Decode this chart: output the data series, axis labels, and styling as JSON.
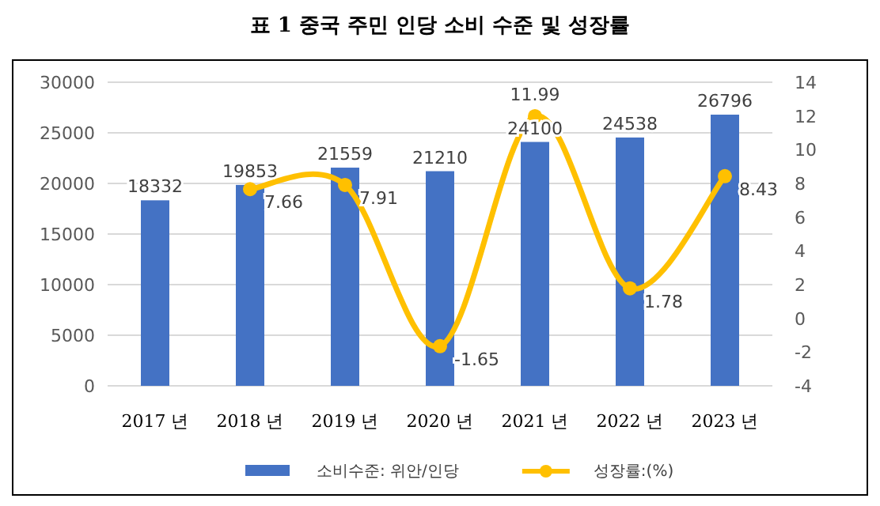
{
  "chart_data": {
    "type": "bar",
    "title": "표 1    중국 주민 인당 소비 수준 및 성장률",
    "categories": [
      "2017 년",
      "2018 년",
      "2019 년",
      "2020 년",
      "2021 년",
      "2022 년",
      "2023 년"
    ],
    "series": [
      {
        "name": "소비수준: 위안/인당",
        "color": "#4472c4",
        "values": [
          18332,
          19853,
          21559,
          21210,
          24100,
          24538,
          26796
        ]
      },
      {
        "name": "성장률:(%)",
        "type": "line",
        "axis": "y2",
        "color": "#ffc000",
        "marker": "circle",
        "values": [
          null,
          7.66,
          7.91,
          -1.65,
          11.99,
          1.78,
          8.43
        ]
      }
    ],
    "ylim": [
      0,
      30000
    ],
    "yticks": [
      0,
      5000,
      10000,
      15000,
      20000,
      25000,
      30000
    ],
    "y2lim": [
      -4,
      14
    ],
    "y2ticks": [
      -4,
      -2,
      0,
      2,
      4,
      6,
      8,
      10,
      12,
      14
    ],
    "grid": "y",
    "legend": "bottom",
    "data_labels": true
  }
}
